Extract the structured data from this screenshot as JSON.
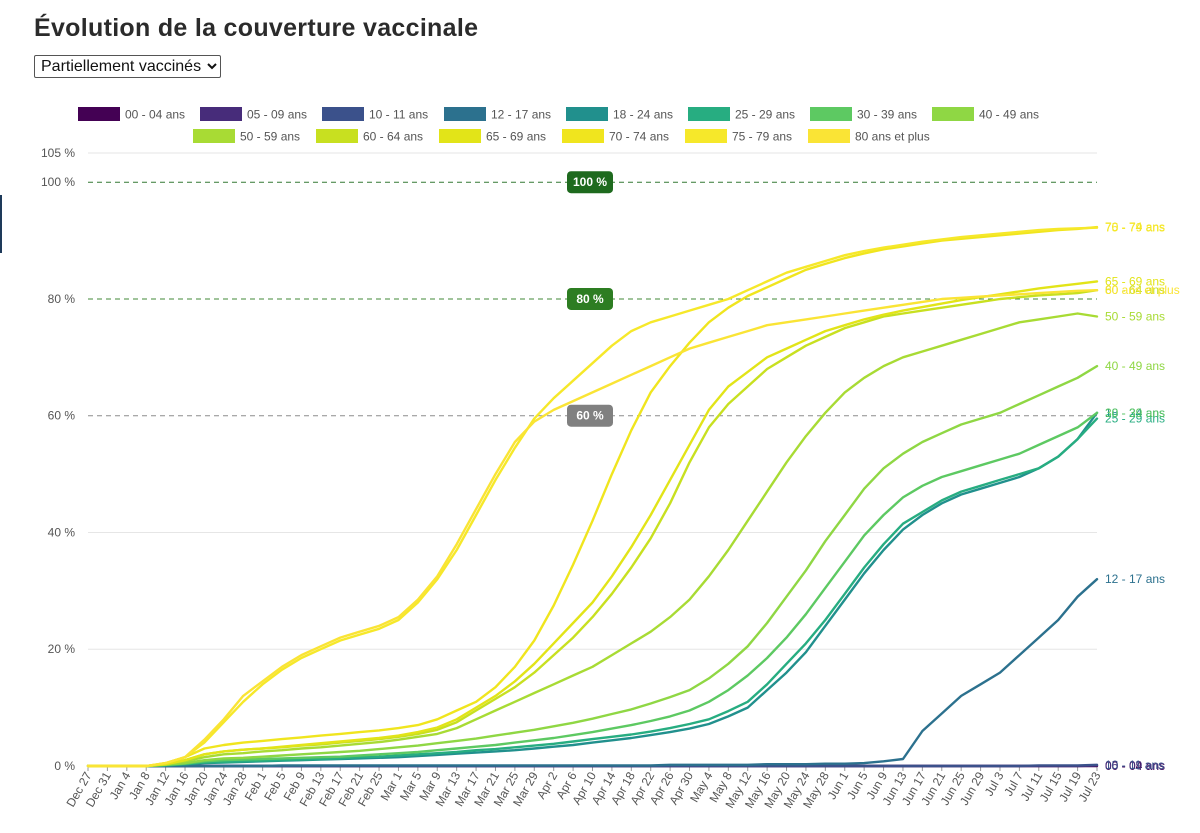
{
  "header": {
    "title": "Évolution de la couverture vaccinale"
  },
  "dose_select": {
    "selected": "Partiellement vaccinés",
    "options": [
      "Partiellement vaccinés"
    ]
  },
  "chart_data": {
    "type": "line",
    "title": "Évolution de la couverture vaccinale",
    "xlabel": "",
    "ylabel": "",
    "ylim": [
      0,
      105
    ],
    "yticks": [
      {
        "value": 0,
        "label": "0 %"
      },
      {
        "value": 20,
        "label": "20 %"
      },
      {
        "value": 40,
        "label": "40 %"
      },
      {
        "value": 60,
        "label": "60 %"
      },
      {
        "value": 80,
        "label": "80 %"
      },
      {
        "value": 100,
        "label": "100 %"
      },
      {
        "value": 105,
        "label": "105 %"
      }
    ],
    "x": [
      "Dec 27",
      "Dec 31",
      "Jan 4",
      "Jan 8",
      "Jan 12",
      "Jan 16",
      "Jan 20",
      "Jan 24",
      "Jan 28",
      "Feb 1",
      "Feb 5",
      "Feb 9",
      "Feb 13",
      "Feb 17",
      "Feb 21",
      "Feb 25",
      "Mar 1",
      "Mar 5",
      "Mar 9",
      "Mar 13",
      "Mar 17",
      "Mar 21",
      "Mar 25",
      "Mar 29",
      "Apr 2",
      "Apr 6",
      "Apr 10",
      "Apr 14",
      "Apr 18",
      "Apr 22",
      "Apr 26",
      "Apr 30",
      "May 4",
      "May 8",
      "May 12",
      "May 16",
      "May 20",
      "May 24",
      "May 28",
      "Jun 1",
      "Jun 5",
      "Jun 9",
      "Jun 13",
      "Jun 17",
      "Jun 21",
      "Jun 25",
      "Jun 29",
      "Jul 3",
      "Jul 7",
      "Jul 11",
      "Jul 15",
      "Jul 19",
      "Jul 23"
    ],
    "thresholds": [
      {
        "value": 100,
        "label": "100 %",
        "color": "#1e6a1e"
      },
      {
        "value": 80,
        "label": "80 %",
        "color": "#2d7d22"
      },
      {
        "value": 60,
        "label": "60 %",
        "color": "#808080"
      }
    ],
    "legend_position": "top",
    "grid": true,
    "series": [
      {
        "name": "00 - 04 ans",
        "color": "#440154",
        "end_label": "00 - 04 ans",
        "values": [
          0,
          0,
          0,
          0,
          0,
          0,
          0,
          0,
          0,
          0,
          0,
          0,
          0,
          0,
          0,
          0,
          0,
          0,
          0,
          0,
          0,
          0,
          0,
          0,
          0,
          0,
          0,
          0,
          0,
          0,
          0,
          0,
          0,
          0,
          0,
          0,
          0,
          0,
          0,
          0,
          0,
          0,
          0,
          0,
          0,
          0,
          0,
          0,
          0,
          0,
          0,
          0,
          0
        ]
      },
      {
        "name": "05 - 09 ans",
        "color": "#472c7a",
        "end_label": "05 - 09 ans",
        "values": [
          0,
          0,
          0,
          0,
          0,
          0,
          0,
          0,
          0,
          0,
          0,
          0,
          0,
          0,
          0,
          0,
          0,
          0,
          0,
          0,
          0,
          0,
          0,
          0,
          0,
          0,
          0,
          0,
          0,
          0,
          0,
          0,
          0,
          0,
          0,
          0,
          0,
          0,
          0,
          0,
          0,
          0,
          0,
          0,
          0,
          0,
          0,
          0,
          0,
          0,
          0,
          0,
          0.1
        ]
      },
      {
        "name": "10 - 11 ans",
        "color": "#3b518b",
        "end_label": "10 - 11 ans",
        "values": [
          0,
          0,
          0,
          0,
          0,
          0,
          0,
          0,
          0,
          0,
          0,
          0,
          0,
          0,
          0,
          0,
          0,
          0,
          0,
          0,
          0,
          0,
          0,
          0,
          0,
          0,
          0,
          0,
          0,
          0,
          0,
          0,
          0,
          0,
          0,
          0,
          0,
          0,
          0,
          0,
          0,
          0,
          0,
          0,
          0,
          0,
          0,
          0,
          0,
          0.1,
          0.1,
          0.1,
          0.2
        ]
      },
      {
        "name": "12 - 17 ans",
        "color": "#2c718e",
        "end_label": "12 - 17 ans",
        "values": [
          0,
          0,
          0,
          0,
          0,
          0,
          0,
          0,
          0,
          0,
          0.1,
          0.1,
          0.1,
          0.1,
          0.1,
          0.1,
          0.1,
          0.1,
          0.1,
          0.1,
          0.1,
          0.1,
          0.1,
          0.1,
          0.1,
          0.1,
          0.1,
          0.1,
          0.1,
          0.1,
          0.2,
          0.2,
          0.2,
          0.2,
          0.2,
          0.3,
          0.3,
          0.3,
          0.4,
          0.4,
          0.5,
          0.8,
          1.2,
          6,
          9,
          12,
          14,
          16,
          19,
          22,
          25,
          29,
          32
        ]
      },
      {
        "name": "18 - 24 ans",
        "color": "#21908d",
        "end_label": "18 - 24 ans",
        "values": [
          0,
          0,
          0,
          0,
          0.1,
          0.3,
          0.5,
          0.6,
          0.7,
          0.8,
          0.9,
          1,
          1.1,
          1.2,
          1.3,
          1.4,
          1.5,
          1.7,
          1.9,
          2.1,
          2.3,
          2.5,
          2.7,
          3,
          3.3,
          3.6,
          4,
          4.4,
          4.8,
          5.3,
          5.8,
          6.4,
          7.2,
          8.5,
          10,
          13,
          16,
          19.5,
          24,
          28.5,
          33,
          37,
          40.5,
          43,
          45,
          46.5,
          47.5,
          48.5,
          49.5,
          51,
          53,
          56,
          60.5
        ]
      },
      {
        "name": "25 - 29 ans",
        "color": "#27ad81",
        "end_label": "25 - 29 ans",
        "values": [
          0,
          0,
          0,
          0,
          0.1,
          0.3,
          0.6,
          0.7,
          0.8,
          0.9,
          1,
          1.1,
          1.2,
          1.3,
          1.5,
          1.6,
          1.8,
          2,
          2.2,
          2.4,
          2.7,
          2.9,
          3.2,
          3.5,
          3.8,
          4.2,
          4.6,
          5,
          5.4,
          5.9,
          6.5,
          7.2,
          8,
          9.4,
          11,
          14,
          17.5,
          21,
          25,
          29.5,
          34,
          38,
          41.5,
          43.5,
          45.5,
          47,
          48,
          49,
          50,
          51,
          53,
          56,
          59.5
        ]
      },
      {
        "name": "30 - 39 ans",
        "color": "#5dc962",
        "end_label": "30 - 39 ans",
        "values": [
          0,
          0,
          0,
          0,
          0.2,
          0.4,
          0.8,
          1,
          1.1,
          1.2,
          1.3,
          1.4,
          1.5,
          1.6,
          1.8,
          2,
          2.2,
          2.4,
          2.7,
          3,
          3.3,
          3.6,
          4,
          4.4,
          4.8,
          5.3,
          5.8,
          6.4,
          7,
          7.7,
          8.5,
          9.5,
          11,
          13,
          15.5,
          18.5,
          22,
          26,
          30.5,
          35,
          39.5,
          43,
          46,
          48,
          49.5,
          50.5,
          51.5,
          52.5,
          53.5,
          55,
          56.5,
          58,
          60.5
        ]
      },
      {
        "name": "40 - 49 ans",
        "color": "#8fd744",
        "end_label": "40 - 49 ans",
        "values": [
          0,
          0,
          0,
          0,
          0.2,
          0.5,
          1,
          1.3,
          1.4,
          1.6,
          1.8,
          2,
          2.2,
          2.4,
          2.6,
          2.9,
          3.2,
          3.5,
          3.9,
          4.3,
          4.7,
          5.2,
          5.7,
          6.2,
          6.8,
          7.4,
          8.1,
          8.9,
          9.7,
          10.7,
          11.8,
          13,
          15,
          17.5,
          20.5,
          24.5,
          29,
          33.5,
          38.5,
          43,
          47.5,
          51,
          53.5,
          55.5,
          57,
          58.5,
          59.5,
          60.5,
          62,
          63.5,
          65,
          66.5,
          68.5
        ]
      },
      {
        "name": "50 - 59 ans",
        "color": "#a8db34",
        "end_label": "50 - 59 ans",
        "values": [
          0,
          0,
          0,
          0,
          0.3,
          0.8,
          1.5,
          2,
          2.2,
          2.5,
          2.7,
          3,
          3.2,
          3.5,
          3.8,
          4.1,
          4.5,
          5,
          5.5,
          6.5,
          8,
          9.5,
          11,
          12.5,
          14,
          15.5,
          17,
          19,
          21,
          23,
          25.5,
          28.5,
          32.5,
          37,
          42,
          47,
          52,
          56.5,
          60.5,
          64,
          66.5,
          68.5,
          70,
          71,
          72,
          73,
          74,
          75,
          76,
          76.5,
          77,
          77.5,
          77
        ]
      },
      {
        "name": "60 - 64 ans",
        "color": "#c8e020",
        "end_label": "60 - 64 ans",
        "values": [
          0,
          0,
          0,
          0,
          0.3,
          1,
          2,
          2.5,
          2.8,
          3,
          3.2,
          3.5,
          3.7,
          4,
          4.3,
          4.6,
          5,
          5.5,
          6.2,
          7.5,
          9.5,
          11.5,
          13.5,
          16,
          19,
          22,
          25.5,
          29.5,
          34,
          39,
          45,
          52,
          58,
          62,
          65,
          68,
          70,
          72,
          73.5,
          75,
          76,
          77,
          77.5,
          78,
          78.5,
          79,
          79.5,
          80,
          80.3,
          80.6,
          80.8,
          81,
          81.5
        ]
      },
      {
        "name": "65 - 69 ans",
        "color": "#e2e418",
        "end_label": "65 - 69 ans",
        "values": [
          0,
          0,
          0,
          0,
          0.3,
          1,
          2,
          2.5,
          2.8,
          3,
          3.3,
          3.6,
          3.9,
          4.2,
          4.5,
          4.8,
          5.2,
          5.8,
          6.6,
          8,
          10,
          12,
          14.5,
          17.5,
          21,
          24.5,
          28,
          32.5,
          37.5,
          43,
          49,
          55,
          61,
          65,
          67.5,
          70,
          71.5,
          73,
          74.5,
          75.5,
          76.5,
          77.3,
          78,
          78.6,
          79.2,
          79.8,
          80.3,
          80.8,
          81.3,
          81.8,
          82.2,
          82.6,
          83
        ]
      },
      {
        "name": "70 - 74 ans",
        "color": "#f0e51e",
        "end_label": "70 - 74 ans",
        "values": [
          0,
          0,
          0,
          0,
          0.5,
          1.5,
          3,
          3.6,
          4,
          4.3,
          4.6,
          4.9,
          5.2,
          5.5,
          5.8,
          6.1,
          6.5,
          7,
          8,
          9.5,
          11,
          13.5,
          17,
          21.5,
          27.5,
          34.5,
          42,
          50,
          57.5,
          64,
          68.5,
          72.5,
          76,
          78.5,
          80.5,
          82,
          83.5,
          85,
          86,
          87,
          87.8,
          88.5,
          89,
          89.5,
          90,
          90.3,
          90.6,
          90.9,
          91.2,
          91.5,
          91.8,
          92,
          92.3
        ]
      },
      {
        "name": "75 - 79 ans",
        "color": "#f6e82a",
        "end_label": "75 - 79 ans",
        "values": [
          0,
          0,
          0,
          0,
          0.5,
          1.5,
          4,
          7.5,
          11,
          14,
          16.5,
          18.5,
          20,
          21.5,
          22.5,
          23.5,
          25,
          28,
          32,
          37,
          43,
          49,
          54.5,
          59.5,
          63,
          66,
          69,
          72,
          74.5,
          76,
          77,
          78,
          79,
          80,
          81.5,
          83,
          84.5,
          85.5,
          86.5,
          87.5,
          88.2,
          88.8,
          89.3,
          89.8,
          90.2,
          90.6,
          90.9,
          91.2,
          91.5,
          91.8,
          92,
          92.1,
          92.2
        ]
      },
      {
        "name": "80 ans et plus",
        "color": "#fae435",
        "end_label": "80 ans et plus",
        "values": [
          0,
          0,
          0,
          0,
          0.5,
          1.5,
          4.5,
          8,
          12,
          14.5,
          17,
          19,
          20.5,
          22,
          23,
          24,
          25.5,
          28.5,
          32.5,
          38,
          44,
          50,
          55.5,
          59,
          61,
          62.5,
          64,
          65.5,
          67,
          68.5,
          70,
          71.5,
          72.5,
          73.5,
          74.5,
          75.5,
          76,
          76.5,
          77,
          77.5,
          78,
          78.5,
          79,
          79.5,
          80,
          80.2,
          80.4,
          80.6,
          80.8,
          81,
          81.2,
          81.4,
          81.5
        ]
      }
    ]
  }
}
